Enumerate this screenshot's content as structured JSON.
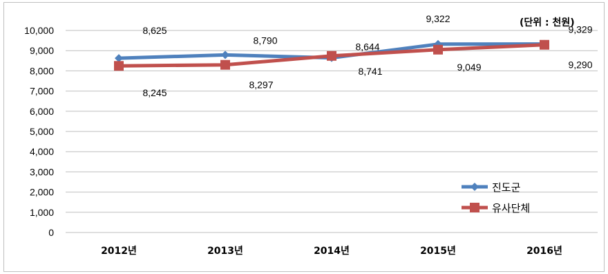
{
  "chart_data": {
    "type": "line",
    "unit_label": "(단위 : 천원)",
    "categories": [
      "2012년",
      "2013년",
      "2014년",
      "2015년",
      "2016년"
    ],
    "ylim": [
      0,
      10000
    ],
    "yticks": [
      "0",
      "1,000",
      "2,000",
      "3,000",
      "4,000",
      "5,000",
      "6,000",
      "7,000",
      "8,000",
      "9,000",
      "10,000"
    ],
    "grid": true,
    "legend_position": "bottom-right",
    "series": [
      {
        "name": "진도군",
        "color": "#4F81BD",
        "marker": "diamond",
        "values": [
          8625,
          8790,
          8644,
          9322,
          9329
        ],
        "labels": [
          "8,625",
          "8,790",
          "8,644",
          "9,322",
          "9,329"
        ]
      },
      {
        "name": "유사단체",
        "color": "#C0504D",
        "marker": "square",
        "values": [
          8245,
          8297,
          8741,
          9049,
          9290
        ],
        "labels": [
          "8,245",
          "8,297",
          "8,741",
          "9,049",
          "9,290"
        ]
      }
    ]
  }
}
